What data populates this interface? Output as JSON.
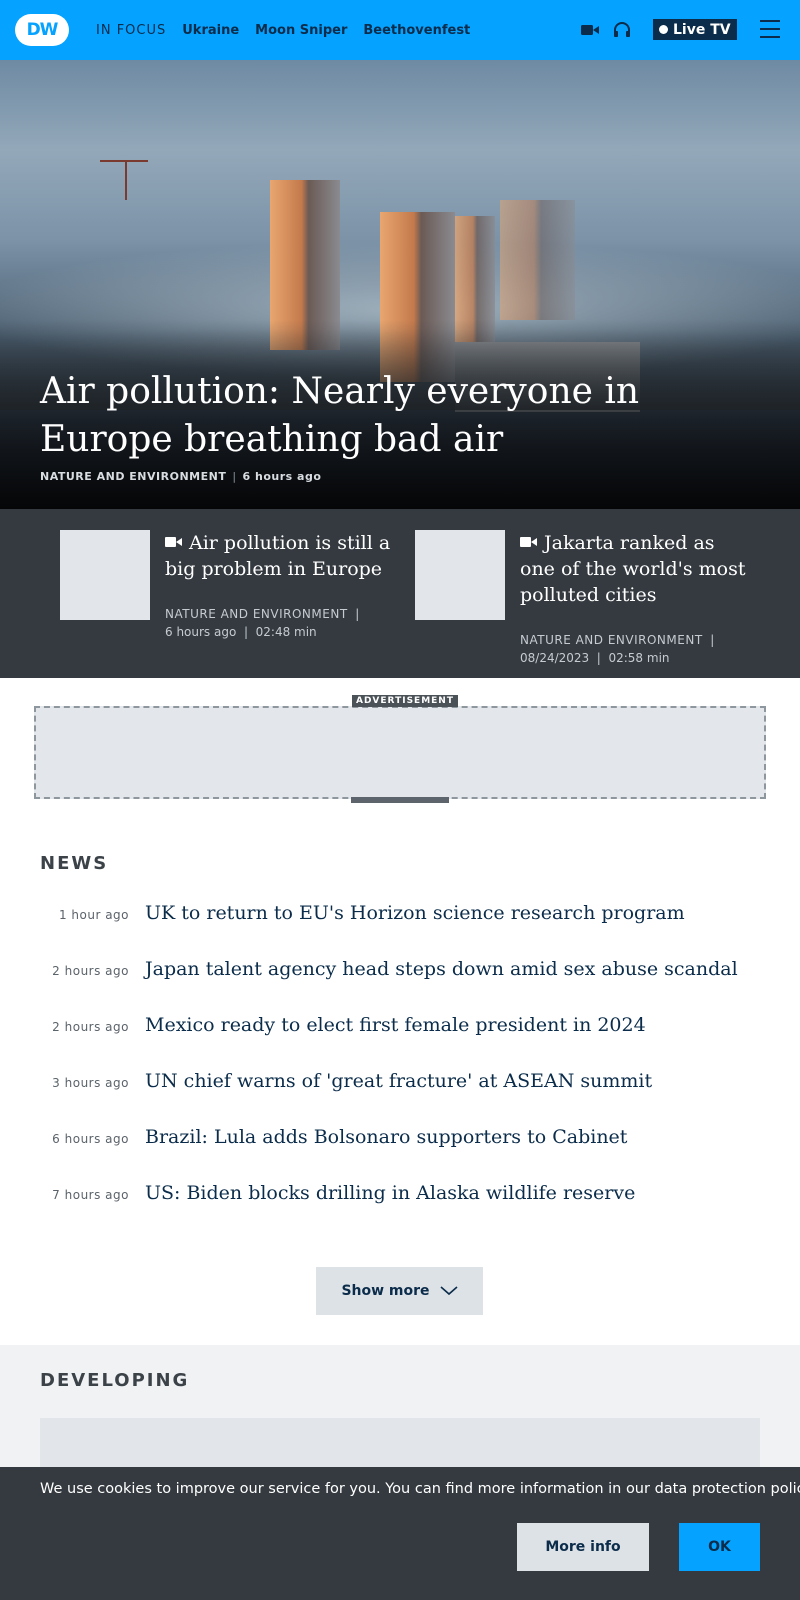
{
  "header": {
    "logo_text": "DW",
    "nav": [
      {
        "label": "IN FOCUS"
      },
      {
        "label": "Ukraine"
      },
      {
        "label": "Moon Sniper"
      },
      {
        "label": "Beethovenfest"
      }
    ],
    "live_label": "Live TV"
  },
  "hero": {
    "title": "Air pollution: Nearly everyone in Europe breathing bad air",
    "category": "NATURE AND ENVIRONMENT",
    "time": "6 hours ago"
  },
  "teasers": [
    {
      "title": "Air pollution is still a big problem in Europe",
      "category": "NATURE AND ENVIRONMENT",
      "time": "6 hours ago",
      "duration": "02:48 min"
    },
    {
      "title": "Jakarta ranked as one of the world's most polluted cities",
      "category": "NATURE AND ENVIRONMENT",
      "time": "08/24/2023",
      "duration": "02:58 min"
    }
  ],
  "ad": {
    "label": "ADVERTISEMENT"
  },
  "news": {
    "title": "NEWS",
    "items": [
      {
        "time": "1 hour ago",
        "headline": "UK to return to EU's Horizon science research program"
      },
      {
        "time": "2 hours ago",
        "headline": "Japan talent agency head steps down amid sex abuse scandal"
      },
      {
        "time": "2 hours ago",
        "headline": "Mexico ready to elect first female president in 2024"
      },
      {
        "time": "3 hours ago",
        "headline": "UN chief warns of 'great fracture' at ASEAN summit"
      },
      {
        "time": "6 hours ago",
        "headline": "Brazil: Lula adds Bolsonaro supporters to Cabinet"
      },
      {
        "time": "7 hours ago",
        "headline": "US: Biden blocks drilling in Alaska wildlife reserve"
      }
    ],
    "show_more": "Show more"
  },
  "developing": {
    "title": "DEVELOPING"
  },
  "cookie": {
    "text": "We use cookies to improve our service for you. You can find more information in our data protection policy.",
    "more_info": "More info",
    "ok": "OK"
  },
  "icons": [
    "video-camera-icon",
    "headphones-icon",
    "menu-icon",
    "chevron-down-icon"
  ],
  "colors": {
    "brand_blue": "#05a2ff",
    "navy": "#0b2c4a",
    "dark_panel": "#343a40"
  }
}
